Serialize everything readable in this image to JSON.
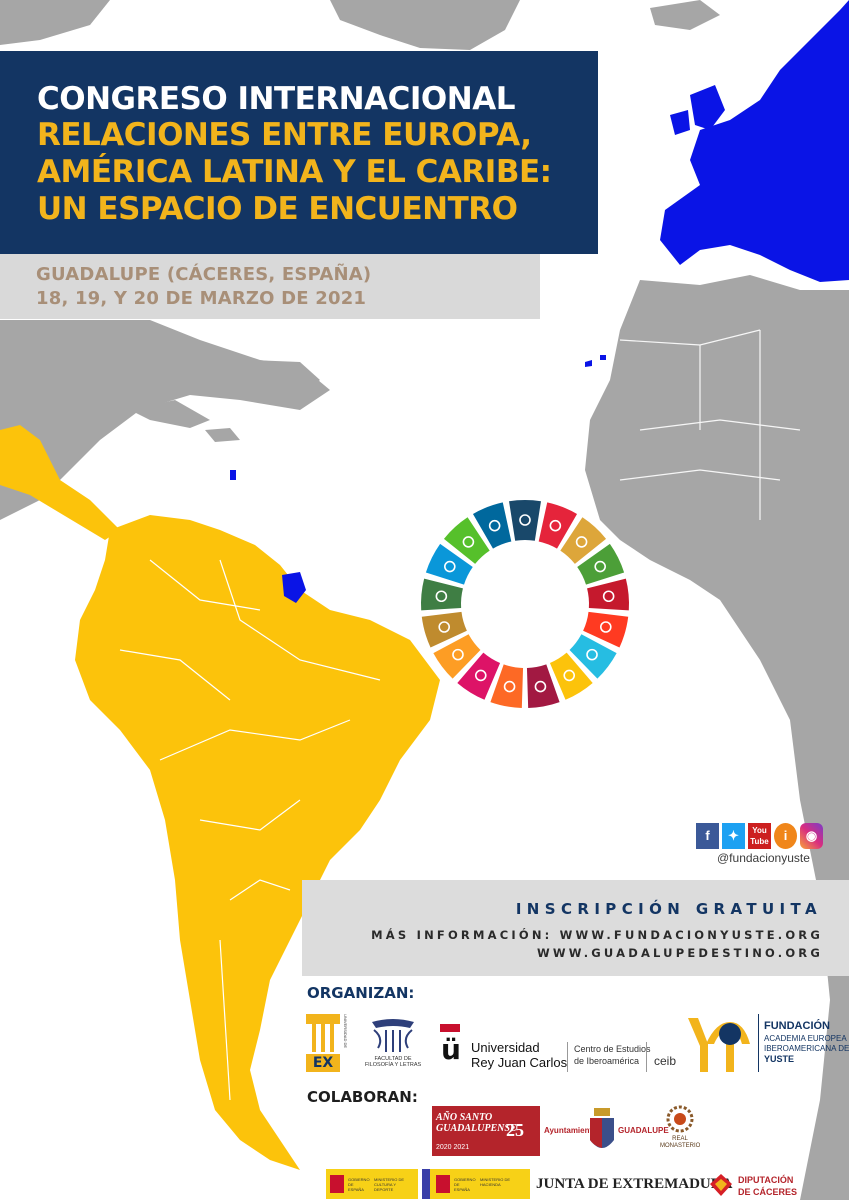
{
  "title": {
    "line1": "CONGRESO INTERNACIONAL",
    "line2": "RELACIONES ENTRE EUROPA,",
    "line3": "AMÉRICA LATINA Y EL CARIBE:",
    "line4": "UN ESPACIO DE ENCUENTRO"
  },
  "event": {
    "location": "GUADALUPE (CÁCERES, ESPAÑA)",
    "dates": "18, 19, Y 20 DE MARZO DE 2021"
  },
  "social": {
    "icons": [
      "facebook-icon",
      "twitter-icon",
      "youtube-icon",
      "info-icon",
      "instagram-icon"
    ],
    "youtube_text": "You Tube",
    "handle": "@fundacionyuste"
  },
  "registration": {
    "title": "INSCRIPCIÓN GRATUITA",
    "more_info": "MÁS INFORMACIÓN: WWW.FUNDACIONYUSTE.ORG",
    "site2": "WWW.GUADALUPEDESTINO.ORG"
  },
  "organizers": {
    "label": "ORGANIZAN:",
    "uex": "UNIVERSIDAD DE EXTREMADURA",
    "uex_short": "EX",
    "facultad": "FACULTAD DE FILOSOFÍA Y LETRAS",
    "urjc_line1": "Universidad",
    "urjc_line2": "Rey Juan Carlos",
    "ceib_line1": "Centro de Estudios",
    "ceib_line2": "de Iberoamérica",
    "ceib": "ceib",
    "yuste_line1": "FUNDACIÓN",
    "yuste_line2": "ACADEMIA EUROPEA E",
    "yuste_line3": "IBEROAMERICANA DE",
    "yuste_line4": "YUSTE"
  },
  "collaborators": {
    "label": "COLABORAN:",
    "ano_santo": "AÑO SANTO GUADALUPENSE",
    "ano_year": "2020 2021",
    "anniv": "25",
    "ayuntamiento": "Ayuntamiento",
    "guadalupe": "GUADALUPE",
    "monasterio": "REAL MONASTERIO",
    "gob1": "GOBIERNO DE ESPAÑA",
    "min1": "MINISTERIO DE CULTURA Y DEPORTE",
    "gob2": "GOBIERNO DE ESPAÑA",
    "min2": "MINISTERIO DE HACIENDA",
    "junta": "JUNTA DE EXTREMADURA",
    "dip1": "DIPUTACIÓN",
    "dip2": "DE CÁCERES"
  },
  "colors": {
    "navy": "#133563",
    "gold": "#f2b41c",
    "latam": "#fcc30b",
    "europe": "#0a14e6",
    "land": "#a6a6a6"
  },
  "sdg_colors": [
    "#e5243b",
    "#dda63a",
    "#4c9f38",
    "#c5192d",
    "#ff3a21",
    "#26bde2",
    "#fcc30b",
    "#a21942",
    "#fd6925",
    "#dd1367",
    "#fd9d24",
    "#bf8b2e",
    "#3f7e44",
    "#0a97d9",
    "#56c02b",
    "#00689d",
    "#19486a"
  ]
}
